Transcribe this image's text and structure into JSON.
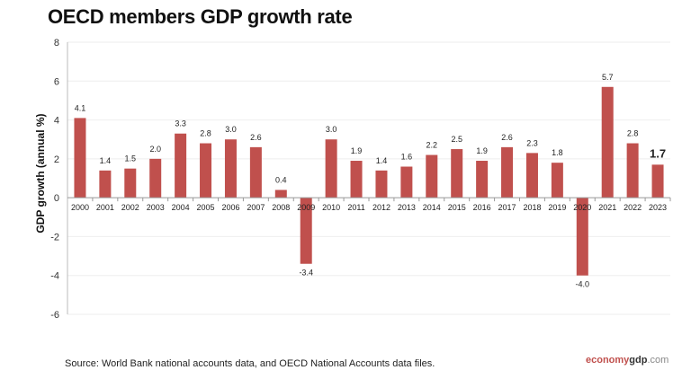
{
  "chart_data": {
    "type": "bar",
    "title": "OECD members GDP growth rate",
    "ylabel": "GDP growth (annual %)",
    "xlabel": "",
    "ylim": [
      -6,
      8
    ],
    "yticks": [
      8,
      6,
      4,
      2,
      0,
      -2,
      -4,
      -6
    ],
    "grid": true,
    "bar_color": "#c0504d",
    "categories": [
      "2000",
      "2001",
      "2002",
      "2003",
      "2004",
      "2005",
      "2006",
      "2007",
      "2008",
      "2009",
      "2010",
      "2011",
      "2012",
      "2013",
      "2014",
      "2015",
      "2016",
      "2017",
      "2018",
      "2019",
      "2020",
      "2021",
      "2022",
      "2023"
    ],
    "values": [
      4.1,
      1.4,
      1.5,
      2.0,
      3.3,
      2.8,
      3.0,
      2.6,
      0.4,
      -3.4,
      3.0,
      1.9,
      1.4,
      1.6,
      2.2,
      2.5,
      1.9,
      2.6,
      2.3,
      1.8,
      -4.0,
      5.7,
      2.8,
      1.7
    ],
    "highlight_last_label": true
  },
  "source": "Source: World Bank national accounts data, and OECD National Accounts data files.",
  "logo": {
    "part1": "economy",
    "part2": "gdp",
    "part3": ".com"
  }
}
